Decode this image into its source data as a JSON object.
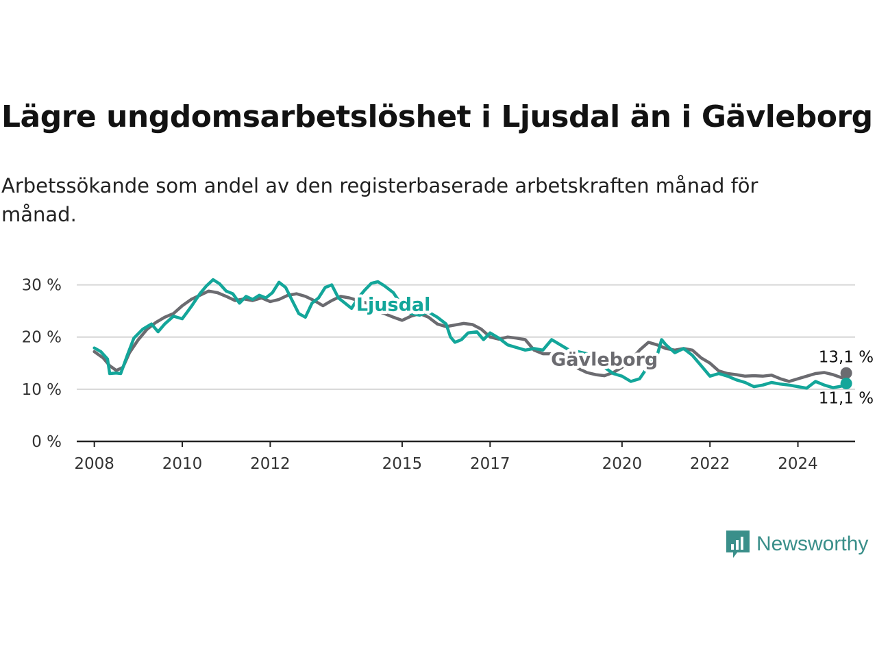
{
  "title": "Lägre ungdomsarbetslöshet i Ljusdal än i Gävleborg",
  "subtitle": "Arbetssökande som andel av den registerbaserade arbetskraften månad för månad.",
  "brand": "Newsworthy",
  "colors": {
    "gavleborg": "#6b6b70",
    "ljusdal": "#13a69a",
    "grid": "#d6d6d6",
    "axis": "#222222",
    "brand": "#3a8f8a"
  },
  "chart_data": {
    "type": "line",
    "ylim": [
      0,
      31
    ],
    "yticks": [
      0,
      10,
      20,
      30
    ],
    "ytick_labels": [
      "0 %",
      "10 %",
      "20 %",
      "30 %"
    ],
    "xlim": [
      2007.6,
      2025.3
    ],
    "xticks": [
      2008,
      2010,
      2012,
      2015,
      2017,
      2020,
      2022,
      2024
    ],
    "xtick_labels": [
      "2008",
      "2010",
      "2012",
      "2015",
      "2017",
      "2020",
      "2022",
      "2024"
    ],
    "grid": "horizontal",
    "series": [
      {
        "name": "Gävleborg",
        "key": "gavleborg",
        "end_label": "13,1 %",
        "points": [
          [
            2008.0,
            17.2
          ],
          [
            2008.2,
            16.0
          ],
          [
            2008.35,
            14.5
          ],
          [
            2008.5,
            13.6
          ],
          [
            2008.65,
            14.2
          ],
          [
            2008.8,
            17.0
          ],
          [
            2009.0,
            19.5
          ],
          [
            2009.2,
            21.5
          ],
          [
            2009.4,
            22.8
          ],
          [
            2009.6,
            23.8
          ],
          [
            2009.8,
            24.5
          ],
          [
            2010.0,
            26.0
          ],
          [
            2010.2,
            27.2
          ],
          [
            2010.4,
            28.0
          ],
          [
            2010.6,
            28.8
          ],
          [
            2010.8,
            28.5
          ],
          [
            2011.0,
            27.8
          ],
          [
            2011.2,
            27.0
          ],
          [
            2011.4,
            27.3
          ],
          [
            2011.6,
            27.0
          ],
          [
            2011.8,
            27.5
          ],
          [
            2012.0,
            26.8
          ],
          [
            2012.2,
            27.2
          ],
          [
            2012.4,
            28.0
          ],
          [
            2012.6,
            28.3
          ],
          [
            2012.8,
            27.8
          ],
          [
            2013.0,
            27.0
          ],
          [
            2013.2,
            26.0
          ],
          [
            2013.4,
            27.0
          ],
          [
            2013.6,
            27.8
          ],
          [
            2013.8,
            27.5
          ],
          [
            2014.0,
            27.0
          ],
          [
            2014.2,
            26.5
          ],
          [
            2014.4,
            25.0
          ],
          [
            2014.6,
            24.5
          ],
          [
            2014.8,
            23.8
          ],
          [
            2015.0,
            23.2
          ],
          [
            2015.2,
            24.0
          ],
          [
            2015.4,
            24.5
          ],
          [
            2015.6,
            23.8
          ],
          [
            2015.8,
            22.5
          ],
          [
            2016.0,
            22.0
          ],
          [
            2016.2,
            22.3
          ],
          [
            2016.4,
            22.6
          ],
          [
            2016.6,
            22.4
          ],
          [
            2016.8,
            21.5
          ],
          [
            2017.0,
            20.0
          ],
          [
            2017.2,
            19.6
          ],
          [
            2017.4,
            20.0
          ],
          [
            2017.6,
            19.8
          ],
          [
            2017.8,
            19.5
          ],
          [
            2018.0,
            17.5
          ],
          [
            2018.2,
            16.8
          ],
          [
            2018.4,
            16.8
          ],
          [
            2018.6,
            16.6
          ],
          [
            2018.8,
            16.0
          ],
          [
            2019.0,
            14.0
          ],
          [
            2019.2,
            13.2
          ],
          [
            2019.4,
            12.8
          ],
          [
            2019.6,
            12.6
          ],
          [
            2019.8,
            13.2
          ],
          [
            2020.0,
            14.2
          ],
          [
            2020.2,
            15.5
          ],
          [
            2020.4,
            17.5
          ],
          [
            2020.6,
            19.0
          ],
          [
            2020.8,
            18.5
          ],
          [
            2021.0,
            17.8
          ],
          [
            2021.2,
            17.5
          ],
          [
            2021.4,
            17.8
          ],
          [
            2021.6,
            17.5
          ],
          [
            2021.8,
            16.0
          ],
          [
            2022.0,
            15.0
          ],
          [
            2022.2,
            13.5
          ],
          [
            2022.4,
            13.0
          ],
          [
            2022.6,
            12.8
          ],
          [
            2022.8,
            12.5
          ],
          [
            2023.0,
            12.6
          ],
          [
            2023.2,
            12.5
          ],
          [
            2023.4,
            12.7
          ],
          [
            2023.6,
            12.0
          ],
          [
            2023.8,
            11.5
          ],
          [
            2024.0,
            12.0
          ],
          [
            2024.2,
            12.5
          ],
          [
            2024.4,
            13.0
          ],
          [
            2024.6,
            13.2
          ],
          [
            2024.8,
            12.8
          ],
          [
            2025.0,
            12.2
          ],
          [
            2025.1,
            13.1
          ]
        ]
      },
      {
        "name": "Ljusdal",
        "key": "ljusdal",
        "end_label": "11,1 %",
        "points": [
          [
            2008.0,
            17.9
          ],
          [
            2008.15,
            17.2
          ],
          [
            2008.3,
            15.8
          ],
          [
            2008.35,
            13.0
          ],
          [
            2008.5,
            13.1
          ],
          [
            2008.6,
            13.0
          ],
          [
            2008.75,
            16.5
          ],
          [
            2008.9,
            19.8
          ],
          [
            2009.1,
            21.5
          ],
          [
            2009.3,
            22.5
          ],
          [
            2009.45,
            21.0
          ],
          [
            2009.6,
            22.5
          ],
          [
            2009.8,
            24.0
          ],
          [
            2010.0,
            23.5
          ],
          [
            2010.2,
            25.8
          ],
          [
            2010.4,
            28.3
          ],
          [
            2010.55,
            29.8
          ],
          [
            2010.7,
            31.0
          ],
          [
            2010.85,
            30.2
          ],
          [
            2011.0,
            28.8
          ],
          [
            2011.15,
            28.3
          ],
          [
            2011.3,
            26.5
          ],
          [
            2011.45,
            27.8
          ],
          [
            2011.6,
            27.2
          ],
          [
            2011.75,
            28.0
          ],
          [
            2011.9,
            27.5
          ],
          [
            2012.05,
            28.5
          ],
          [
            2012.2,
            30.5
          ],
          [
            2012.35,
            29.5
          ],
          [
            2012.5,
            27.0
          ],
          [
            2012.65,
            24.5
          ],
          [
            2012.8,
            23.8
          ],
          [
            2012.95,
            26.5
          ],
          [
            2013.1,
            27.5
          ],
          [
            2013.25,
            29.5
          ],
          [
            2013.4,
            30.0
          ],
          [
            2013.55,
            27.5
          ],
          [
            2013.7,
            26.5
          ],
          [
            2013.85,
            25.5
          ],
          [
            2014.0,
            27.5
          ],
          [
            2014.15,
            29.0
          ],
          [
            2014.3,
            30.3
          ],
          [
            2014.45,
            30.6
          ],
          [
            2014.6,
            29.8
          ],
          [
            2014.8,
            28.5
          ],
          [
            2015.0,
            26.0
          ],
          [
            2015.2,
            24.5
          ],
          [
            2015.4,
            24.2
          ],
          [
            2015.6,
            24.8
          ],
          [
            2015.8,
            23.8
          ],
          [
            2016.0,
            22.5
          ],
          [
            2016.1,
            20.0
          ],
          [
            2016.2,
            19.0
          ],
          [
            2016.35,
            19.5
          ],
          [
            2016.5,
            20.8
          ],
          [
            2016.7,
            21.0
          ],
          [
            2016.85,
            19.5
          ],
          [
            2017.0,
            20.8
          ],
          [
            2017.2,
            19.8
          ],
          [
            2017.4,
            18.5
          ],
          [
            2017.6,
            18.0
          ],
          [
            2017.8,
            17.5
          ],
          [
            2018.0,
            17.8
          ],
          [
            2018.2,
            17.5
          ],
          [
            2018.4,
            19.5
          ],
          [
            2018.6,
            18.5
          ],
          [
            2018.8,
            17.5
          ],
          [
            2019.0,
            17.2
          ],
          [
            2019.2,
            16.8
          ],
          [
            2019.4,
            15.5
          ],
          [
            2019.6,
            14.2
          ],
          [
            2019.8,
            13.0
          ],
          [
            2020.0,
            12.5
          ],
          [
            2020.2,
            11.5
          ],
          [
            2020.4,
            12.0
          ],
          [
            2020.6,
            14.5
          ],
          [
            2020.8,
            16.5
          ],
          [
            2020.9,
            19.5
          ],
          [
            2021.0,
            18.5
          ],
          [
            2021.2,
            17.0
          ],
          [
            2021.4,
            17.8
          ],
          [
            2021.6,
            16.5
          ],
          [
            2021.8,
            14.5
          ],
          [
            2022.0,
            12.5
          ],
          [
            2022.2,
            13.0
          ],
          [
            2022.4,
            12.5
          ],
          [
            2022.6,
            11.8
          ],
          [
            2022.8,
            11.3
          ],
          [
            2023.0,
            10.5
          ],
          [
            2023.2,
            10.8
          ],
          [
            2023.4,
            11.3
          ],
          [
            2023.6,
            11.0
          ],
          [
            2023.8,
            10.8
          ],
          [
            2024.0,
            10.5
          ],
          [
            2024.2,
            10.2
          ],
          [
            2024.4,
            11.5
          ],
          [
            2024.6,
            10.8
          ],
          [
            2024.8,
            10.3
          ],
          [
            2025.0,
            10.6
          ],
          [
            2025.1,
            11.1
          ]
        ]
      }
    ],
    "annotations": [
      {
        "text": "Ljusdal",
        "series": "ljusdal",
        "x": 2014.8,
        "y": 25.0
      },
      {
        "text": "Gävleborg",
        "series": "gavleborg",
        "x": 2019.6,
        "y": 14.5
      }
    ]
  }
}
